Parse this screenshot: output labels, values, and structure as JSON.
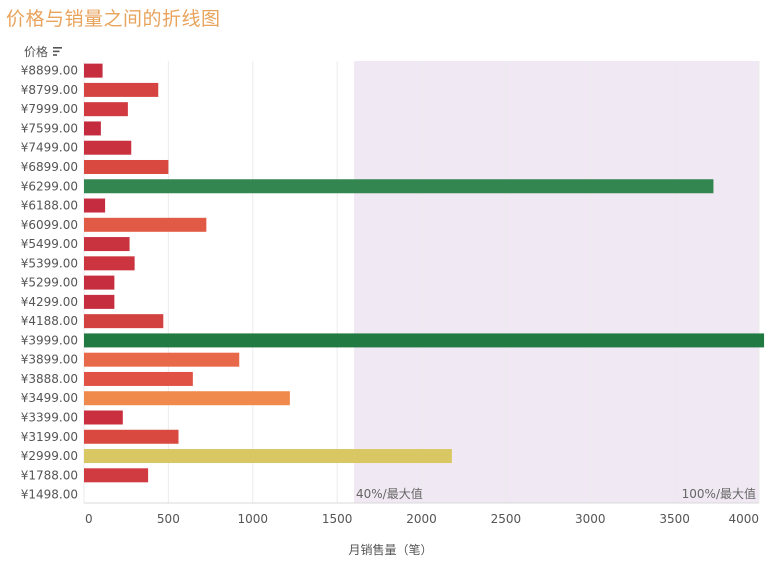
{
  "header": {
    "title": "价格与销量之间的折线图",
    "y_header": "价格"
  },
  "chart_data": {
    "type": "bar",
    "orientation": "horizontal",
    "title": "价格与销量之间的折线图",
    "xlabel": "月销售量（笔）",
    "ylabel": "价格",
    "xlim": [
      0,
      4000
    ],
    "x_ticks": [
      0,
      500,
      1000,
      1500,
      2000,
      2500,
      3000,
      3500,
      4000
    ],
    "grid": true,
    "categories": [
      "¥8899.00",
      "¥8799.00",
      "¥7999.00",
      "¥7599.00",
      "¥7499.00",
      "¥6899.00",
      "¥6299.00",
      "¥6188.00",
      "¥6099.00",
      "¥5499.00",
      "¥5399.00",
      "¥5299.00",
      "¥4299.00",
      "¥4188.00",
      "¥3999.00",
      "¥3899.00",
      "¥3888.00",
      "¥3499.00",
      "¥3399.00",
      "¥3199.00",
      "¥2999.00",
      "¥1788.00",
      "¥1498.00"
    ],
    "values": [
      110,
      440,
      260,
      100,
      280,
      500,
      3730,
      125,
      725,
      270,
      300,
      180,
      180,
      470,
      4030,
      920,
      645,
      1220,
      230,
      560,
      2180,
      380,
      0
    ],
    "colors": [
      "#c62d3f",
      "#d54440",
      "#d03a40",
      "#c52b3f",
      "#c9313f",
      "#d9493f",
      "#33864f",
      "#c62c3f",
      "#e05a45",
      "#c9323f",
      "#cc343f",
      "#c62d3f",
      "#c62d3f",
      "#d24240",
      "#227a43",
      "#e8694a",
      "#df5244",
      "#f0894c",
      "#c92f3f",
      "#d9493f",
      "#d9c764",
      "#cf3b40",
      "#c62d3f"
    ],
    "reference_band": {
      "from": 1600,
      "to": 4000,
      "color": "#f0e8f2",
      "label_start": "40%/最大值",
      "label_end": "100%/最大值"
    }
  }
}
